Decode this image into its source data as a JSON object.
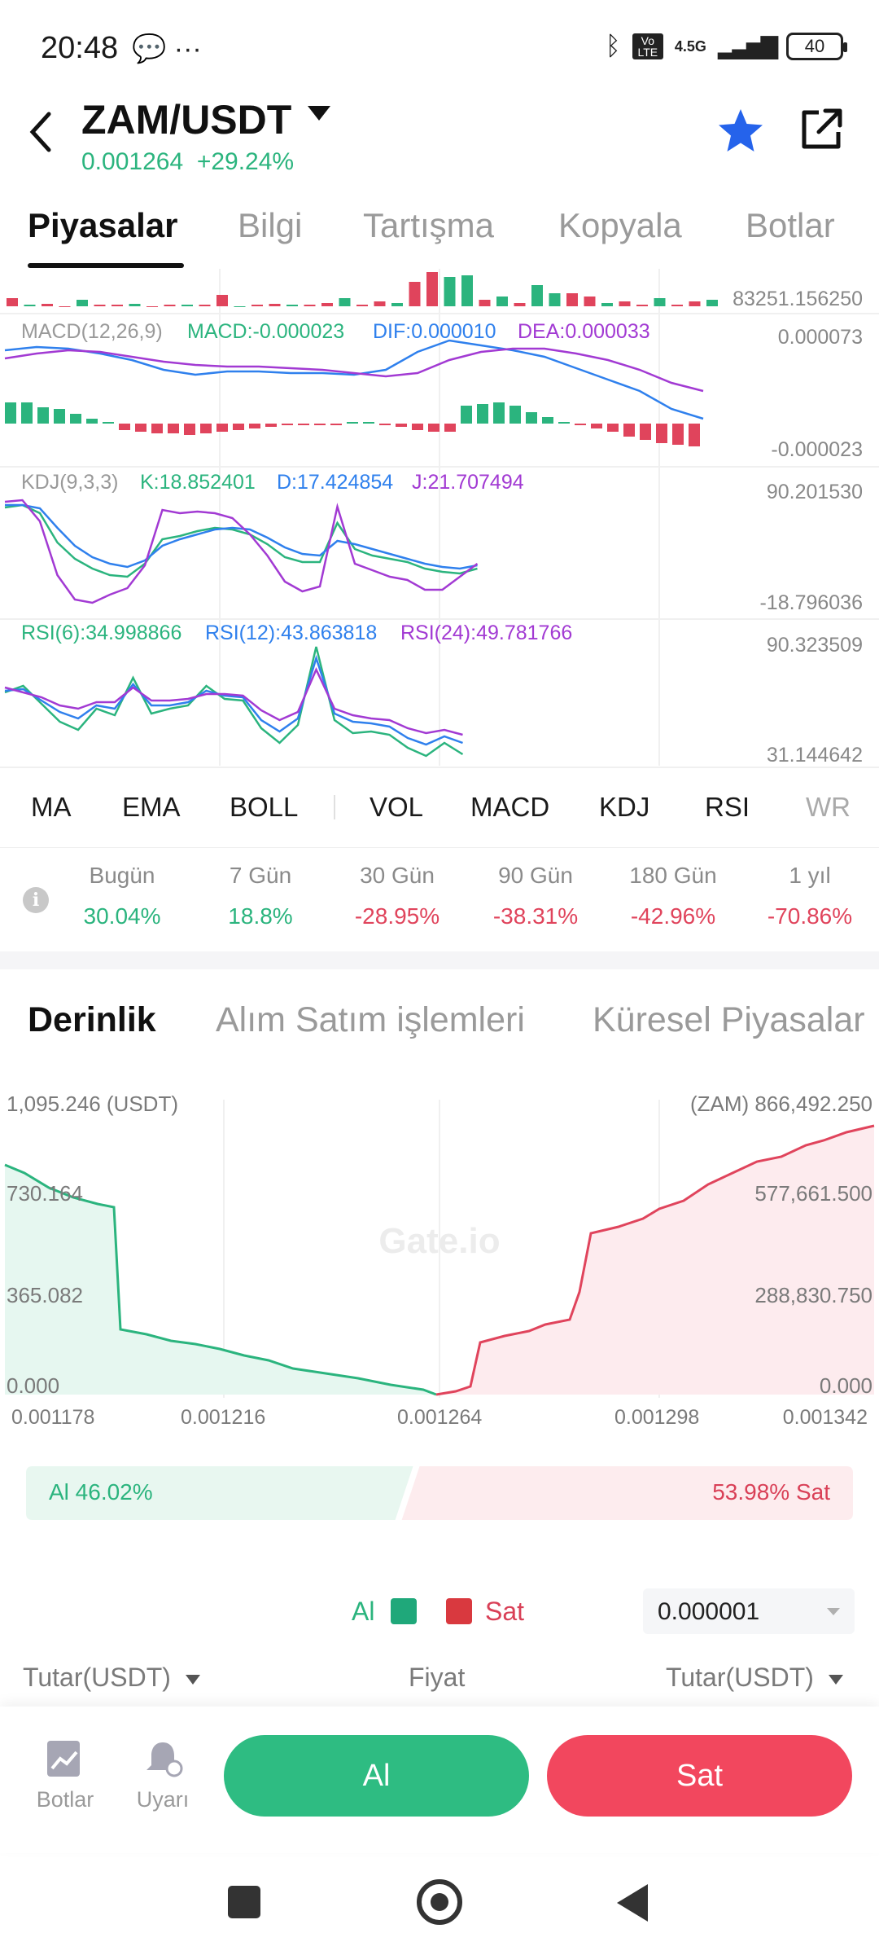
{
  "status": {
    "time": "20:48",
    "network": "4.5G",
    "lte": "Vo LTE",
    "battery": "40"
  },
  "header": {
    "pair": "ZAM/USDT",
    "price": "0.001264",
    "change": "+29.24%"
  },
  "tabs": [
    "Piyasalar",
    "Bilgi",
    "Tartışma",
    "Kopyala",
    "Botlar"
  ],
  "volume": {
    "max_label": "83251.156250"
  },
  "macd": {
    "name": "MACD(12,26,9)",
    "macd": "MACD:-0.000023",
    "dif": "DIF:0.000010",
    "dea": "DEA:0.000033",
    "top": "0.000073",
    "bottom": "-0.000023"
  },
  "kdj": {
    "name": "KDJ(9,3,3)",
    "k": "K:18.852401",
    "d": "D:17.424854",
    "j": "J:21.707494",
    "top": "90.201530",
    "bottom": "-18.796036"
  },
  "rsi": {
    "r6": "RSI(6):34.998866",
    "r12": "RSI(12):43.863818",
    "r24": "RSI(24):49.781766",
    "top": "90.323509",
    "bottom": "31.144642"
  },
  "indicators": [
    "MA",
    "EMA",
    "BOLL",
    "VOL",
    "MACD",
    "KDJ",
    "RSI",
    "WR"
  ],
  "periods": [
    {
      "label": "Bugün",
      "value": "30.04%",
      "color": "green"
    },
    {
      "label": "7 Gün",
      "value": "18.8%",
      "color": "green"
    },
    {
      "label": "30 Gün",
      "value": "-28.95%",
      "color": "red"
    },
    {
      "label": "90 Gün",
      "value": "-38.31%",
      "color": "red"
    },
    {
      "label": "180 Gün",
      "value": "-42.96%",
      "color": "red"
    },
    {
      "label": "1 yıl",
      "value": "-70.86%",
      "color": "red"
    }
  ],
  "depth_tabs": [
    "Derinlik",
    "Alım Satım işlemleri",
    "Küresel Piyasalar"
  ],
  "depth": {
    "left_labels": [
      "1,095.246 (USDT)",
      "730.164",
      "365.082",
      "0.000"
    ],
    "right_labels": [
      "(ZAM) 866,492.250",
      "577,661.500",
      "288,830.750",
      "0.000"
    ],
    "x_labels": [
      "0.001178",
      "0.001216",
      "0.001264",
      "0.001298",
      "0.001342"
    ],
    "watermark": "Gate.io"
  },
  "ratio": {
    "buy": "Al 46.02%",
    "sell": "53.98% Sat",
    "buy_fraction": 0.4602
  },
  "legend": {
    "buy": "Al",
    "sell": "Sat",
    "precision": "0.000001"
  },
  "order_head": {
    "left": "Tutar(USDT)",
    "mid": "Fiyat",
    "right": "Tutar(USDT)"
  },
  "actions": {
    "bots": "Botlar",
    "alert": "Uyarı",
    "buy": "Al",
    "sell": "Sat"
  },
  "colors": {
    "green": "#2bb47e",
    "red": "#e0445c",
    "blue": "#2f80ed",
    "purple": "#a23ad3"
  }
}
